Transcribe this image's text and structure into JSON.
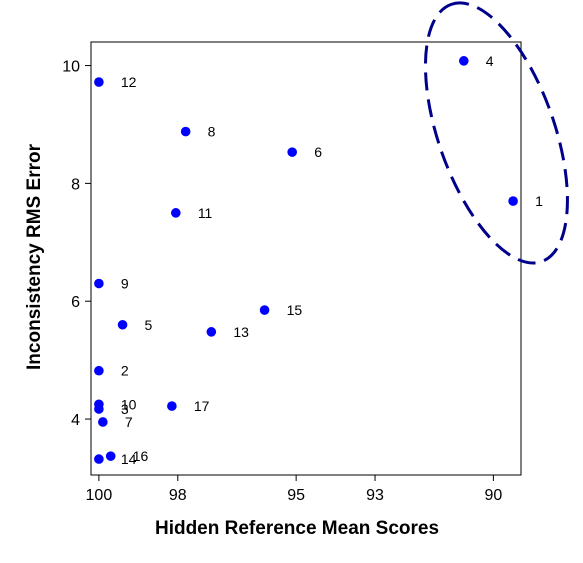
{
  "chart_data": {
    "type": "scatter",
    "xlabel": "Hidden Reference Mean Scores",
    "ylabel": "Inconsistency RMS Error",
    "x_reversed": true,
    "xlim": [
      100.2,
      89.3
    ],
    "ylim": [
      3.05,
      10.4
    ],
    "xticks": [
      {
        "value": 100,
        "label": "100"
      },
      {
        "value": 98,
        "label": "98"
      },
      {
        "value": 95,
        "label": "95"
      },
      {
        "value": 93,
        "label": "93"
      },
      {
        "value": 90,
        "label": "90"
      }
    ],
    "yticks": [
      {
        "value": 4,
        "label": "4"
      },
      {
        "value": 6,
        "label": "6"
      },
      {
        "value": 8,
        "label": "8"
      },
      {
        "value": 10,
        "label": "10"
      }
    ],
    "grid": false,
    "point_color": "#0000ff",
    "highlight_color": "#00008b",
    "points": [
      {
        "label": "1",
        "x": 89.5,
        "y": 7.7
      },
      {
        "label": "2",
        "x": 100.0,
        "y": 4.82
      },
      {
        "label": "3",
        "x": 100.0,
        "y": 4.17
      },
      {
        "label": "4",
        "x": 90.75,
        "y": 10.08
      },
      {
        "label": "5",
        "x": 99.4,
        "y": 5.6
      },
      {
        "label": "6",
        "x": 95.1,
        "y": 8.53
      },
      {
        "label": "7",
        "x": 99.9,
        "y": 3.95
      },
      {
        "label": "8",
        "x": 97.8,
        "y": 8.88
      },
      {
        "label": "9",
        "x": 100.0,
        "y": 6.3
      },
      {
        "label": "10",
        "x": 100.0,
        "y": 4.25
      },
      {
        "label": "11",
        "x": 98.05,
        "y": 7.5
      },
      {
        "label": "12",
        "x": 100.0,
        "y": 9.72
      },
      {
        "label": "13",
        "x": 97.15,
        "y": 5.48
      },
      {
        "label": "14",
        "x": 100.0,
        "y": 3.32
      },
      {
        "label": "15",
        "x": 95.8,
        "y": 5.85
      },
      {
        "label": "16",
        "x": 99.7,
        "y": 3.37
      },
      {
        "label": "17",
        "x": 98.15,
        "y": 4.22
      }
    ],
    "highlighted_points": [
      "4",
      "1"
    ]
  }
}
